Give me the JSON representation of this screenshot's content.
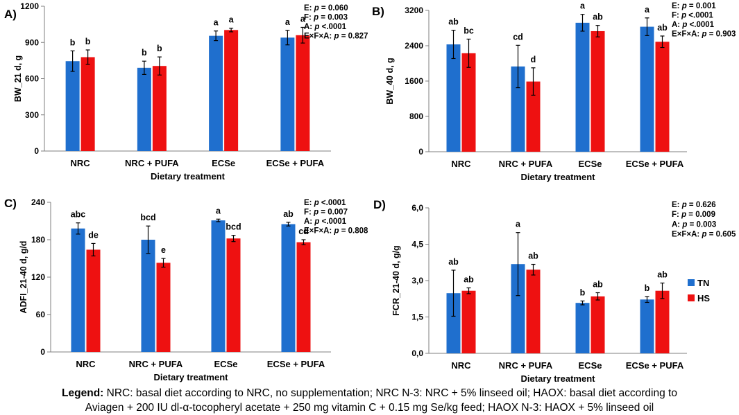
{
  "colors": {
    "TN": "#1f6fce",
    "HS": "#ee1111",
    "axis": "#7f7f7f",
    "text": "#000000"
  },
  "series_legend": [
    {
      "name": "TN",
      "color": "#1f6fce"
    },
    {
      "name": "HS",
      "color": "#ee1111"
    }
  ],
  "caption": {
    "label": "Legend:",
    "line1": " NRC: basal diet according to NRC, no supplementation; NRC N-3: NRC + 5% linseed oil; HAOX: basal diet according to",
    "line2": "Aviagen + 200 IU dl-α-tocopheryl acetate + 250 mg vitamin C + 0.15 mg Se/kg feed; HAOX N-3: HAOX + 5% linseed oil"
  },
  "chart_data": [
    {
      "panel": "A)",
      "type": "bar",
      "categories": [
        "NRC",
        "NRC + PUFA",
        "ECSe",
        "ECSe + PUFA"
      ],
      "xlabel": "Dietary treatment",
      "ylabel": "BW_21 d, g",
      "ylim": [
        0,
        1200
      ],
      "yticks": [
        "0",
        "300",
        "600",
        "900",
        "1200"
      ],
      "ytick_values": [
        0,
        300,
        600,
        900,
        1200
      ],
      "series": [
        {
          "name": "TN",
          "values": [
            745,
            690,
            955,
            940
          ],
          "errors": [
            85,
            55,
            40,
            60
          ],
          "letters": [
            "b",
            "b",
            "a",
            "a"
          ]
        },
        {
          "name": "HS",
          "values": [
            778,
            705,
            1003,
            960
          ],
          "errors": [
            60,
            75,
            15,
            65
          ],
          "letters": [
            "b",
            "b",
            "a",
            "a"
          ]
        }
      ],
      "stats": [
        {
          "label": "E: ",
          "p": "p",
          "value": " = 0.060"
        },
        {
          "label": "F: ",
          "p": "p",
          "value": " = 0.003"
        },
        {
          "label": "A: ",
          "p": "p",
          "value": " <.0001"
        },
        {
          "label": "E×F×A: ",
          "p": "p",
          "value": " = 0.827"
        }
      ]
    },
    {
      "panel": "B)",
      "type": "bar",
      "categories": [
        "NRC",
        "NRC + PUFA",
        "ECSe",
        "ECSe + PUFA"
      ],
      "xlabel": "Dietary treatment",
      "ylabel": "BW_40 d, g",
      "ylim": [
        0,
        3200
      ],
      "yticks": [
        "0",
        "800",
        "1600",
        "2400",
        "3200"
      ],
      "ytick_values": [
        0,
        800,
        1600,
        2400,
        3200
      ],
      "series": [
        {
          "name": "TN",
          "values": [
            2430,
            1930,
            2920,
            2830
          ],
          "errors": [
            320,
            480,
            190,
            200
          ],
          "letters": [
            "ab",
            "cd",
            "a",
            "a"
          ]
        },
        {
          "name": "HS",
          "values": [
            2230,
            1590,
            2730,
            2490
          ],
          "errors": [
            320,
            310,
            130,
            130
          ],
          "letters": [
            "bc",
            "d",
            "ab",
            "ab"
          ]
        }
      ],
      "stats": [
        {
          "label": "E: ",
          "p": "p",
          "value": " = 0.001"
        },
        {
          "label": "F: ",
          "p": "p",
          "value": " <.0001"
        },
        {
          "label": "A: ",
          "p": "p",
          "value": " <.0001"
        },
        {
          "label": "E×F×A: ",
          "p": "p",
          "value": " = 0.903"
        }
      ]
    },
    {
      "panel": "C)",
      "type": "bar",
      "categories": [
        "NRC",
        "NRC + PUFA",
        "ECSe",
        "ECSe + PUFA"
      ],
      "xlabel": "Dietary treatment",
      "ylabel": "ADFI_21-40 d, g/d",
      "ylim": [
        0,
        240
      ],
      "yticks": [
        "0",
        "60",
        "120",
        "180",
        "240"
      ],
      "ytick_values": [
        0,
        60,
        120,
        180,
        240
      ],
      "series": [
        {
          "name": "TN",
          "values": [
            198,
            180,
            211,
            205
          ],
          "errors": [
            9,
            22,
            2,
            3
          ],
          "letters": [
            "abc",
            "bcd",
            "a",
            "ab"
          ]
        },
        {
          "name": "HS",
          "values": [
            164,
            143,
            182,
            176
          ],
          "errors": [
            10,
            7,
            5,
            4
          ],
          "letters": [
            "de",
            "e",
            "bcd",
            "cd"
          ]
        }
      ],
      "stats": [
        {
          "label": "E: ",
          "p": "p",
          "value": " <.0001"
        },
        {
          "label": "F: ",
          "p": "p",
          "value": " = 0.007"
        },
        {
          "label": "A: ",
          "p": "p",
          "value": " <.0001"
        },
        {
          "label": "E×F×A: ",
          "p": "p",
          "value": " = 0.808"
        }
      ]
    },
    {
      "panel": "D)",
      "type": "bar",
      "categories": [
        "NRC",
        "NRC + PUFA",
        "ECSe",
        "ECSe + PUFA"
      ],
      "xlabel": "Dietary treatment",
      "ylabel": "FCR_21-40 d, g/g",
      "ylim": [
        0,
        6
      ],
      "yticks": [
        "0,0",
        "1,5",
        "3,0",
        "4,5",
        "6,0"
      ],
      "ytick_values": [
        0,
        1.5,
        3,
        4.5,
        6
      ],
      "series": [
        {
          "name": "TN",
          "values": [
            2.48,
            3.68,
            2.08,
            2.22
          ],
          "errors": [
            0.95,
            1.3,
            0.08,
            0.12
          ],
          "letters": [
            "ab",
            "a",
            "b",
            "b"
          ]
        },
        {
          "name": "HS",
          "values": [
            2.58,
            3.45,
            2.35,
            2.58
          ],
          "errors": [
            0.12,
            0.22,
            0.15,
            0.32
          ],
          "letters": [
            "ab",
            "ab",
            "ab",
            "ab"
          ]
        }
      ],
      "stats": [
        {
          "label": "E: ",
          "p": "p",
          "value": " = 0.626"
        },
        {
          "label": "F: ",
          "p": "p",
          "value": " = 0.009"
        },
        {
          "label": "A: ",
          "p": "p",
          "value": " = 0.003"
        },
        {
          "label": "E×F×A: ",
          "p": "p",
          "value": " = 0.605"
        }
      ]
    }
  ]
}
